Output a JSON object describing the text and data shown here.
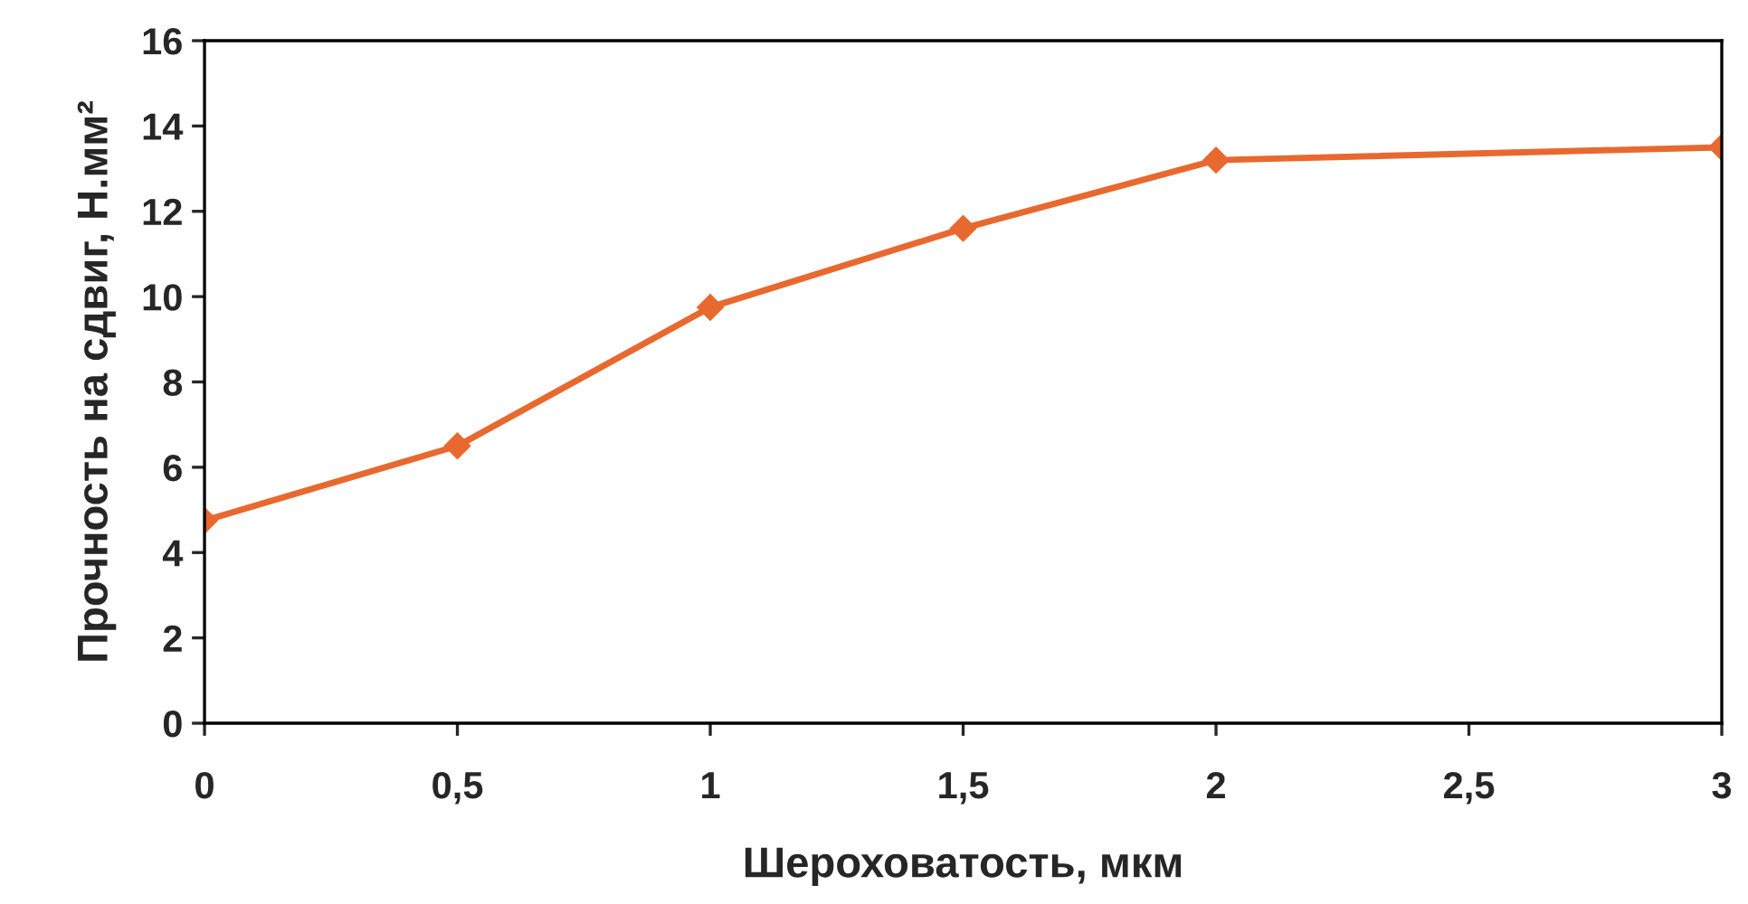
{
  "chart_data": {
    "type": "line",
    "xlabel": "Шероховатость, мкм",
    "ylabel": "Прочность на сдвиг, Н.мм²",
    "x": [
      0,
      0.5,
      1,
      1.5,
      2,
      3
    ],
    "series": [
      {
        "color": "#e8692f",
        "values": [
          4.75,
          6.5,
          9.75,
          11.6,
          13.2,
          13.5
        ]
      }
    ],
    "xlim": [
      0,
      3
    ],
    "xticks": [
      0,
      {
        "value": 0.5,
        "label": "0,5"
      },
      1,
      {
        "value": 1.5,
        "label": "1,5"
      },
      2,
      {
        "value": 2.5,
        "label": "2,5"
      },
      3
    ],
    "ylim": [
      0,
      16
    ],
    "yticks": [
      0,
      2,
      4,
      6,
      8,
      10,
      12,
      14,
      16
    ],
    "grid": false,
    "legend": false,
    "marker": "diamond",
    "line_style": "solid"
  }
}
